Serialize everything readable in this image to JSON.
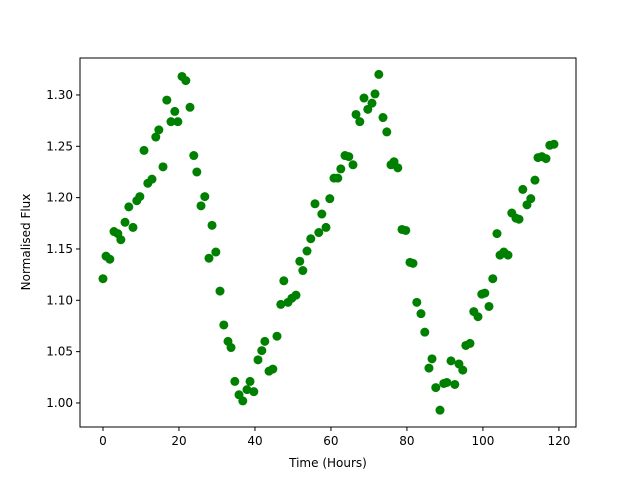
{
  "chart_data": {
    "type": "scatter",
    "xlabel": "Time (Hours)",
    "ylabel": "Normalised Flux",
    "color": "#008000",
    "xlim": [
      -6.05,
      124.5
    ],
    "ylim": [
      0.9766,
      1.336
    ],
    "xticks": [
      0,
      20,
      40,
      60,
      80,
      100,
      120
    ],
    "yticks": [
      {
        "value": 1.0,
        "label": "1.00"
      },
      {
        "value": 1.05,
        "label": "1.05"
      },
      {
        "value": 1.1,
        "label": "1.10"
      },
      {
        "value": 1.15,
        "label": "1.15"
      },
      {
        "value": 1.2,
        "label": "1.20"
      },
      {
        "value": 1.25,
        "label": "1.25"
      },
      {
        "value": 1.3,
        "label": "1.30"
      }
    ],
    "x": [
      0,
      0.8,
      1.8,
      2.9,
      3.9,
      4.7,
      5.8,
      6.8,
      7.9,
      8.9,
      9.7,
      10.8,
      11.8,
      12.9,
      13.9,
      14.7,
      15.8,
      16.8,
      17.9,
      18.9,
      19.7,
      20.8,
      21.8,
      22.9,
      23.9,
      24.7,
      25.8,
      26.8,
      27.9,
      28.7,
      29.7,
      30.8,
      31.8,
      32.9,
      33.7,
      34.7,
      35.8,
      36.8,
      37.9,
      38.7,
      39.7,
      40.8,
      41.8,
      42.6,
      43.7,
      44.7,
      45.8,
      46.8,
      47.6,
      48.7,
      49.7,
      50.8,
      51.8,
      52.6,
      53.7,
      54.7,
      55.8,
      56.8,
      57.6,
      58.7,
      59.7,
      60.8,
      61.8,
      62.6,
      63.7,
      64.7,
      65.8,
      66.6,
      67.6,
      68.7,
      69.7,
      70.8,
      71.6,
      72.6,
      73.7,
      74.7,
      75.8,
      76.6,
      77.6,
      78.7,
      79.7,
      80.8,
      81.6,
      82.6,
      83.7,
      84.7,
      85.8,
      86.6,
      87.6,
      88.7,
      89.7,
      90.5,
      91.6,
      92.6,
      93.7,
      94.7,
      95.5,
      96.6,
      97.6,
      98.7,
      99.7,
      100.5,
      101.6,
      102.6,
      103.7,
      104.5,
      105.5,
      106.6,
      107.6,
      108.7,
      109.5,
      110.5,
      111.6,
      112.6,
      113.7,
      114.5,
      115.5,
      116.6,
      117.6,
      118.7
    ],
    "values": [
      1.121,
      1.143,
      1.14,
      1.167,
      1.165,
      1.159,
      1.176,
      1.191,
      1.171,
      1.197,
      1.201,
      1.246,
      1.214,
      1.218,
      1.259,
      1.266,
      1.23,
      1.295,
      1.274,
      1.284,
      1.274,
      1.318,
      1.314,
      1.288,
      1.241,
      1.225,
      1.192,
      1.201,
      1.141,
      1.173,
      1.147,
      1.109,
      1.076,
      1.06,
      1.054,
      1.021,
      1.008,
      1.002,
      1.013,
      1.021,
      1.011,
      1.042,
      1.051,
      1.06,
      1.031,
      1.033,
      1.065,
      1.096,
      1.119,
      1.098,
      1.102,
      1.105,
      1.138,
      1.129,
      1.148,
      1.16,
      1.194,
      1.166,
      1.184,
      1.171,
      1.199,
      1.219,
      1.219,
      1.228,
      1.241,
      1.24,
      1.232,
      1.281,
      1.274,
      1.297,
      1.286,
      1.292,
      1.301,
      1.32,
      1.278,
      1.264,
      1.232,
      1.235,
      1.229,
      1.169,
      1.168,
      1.137,
      1.136,
      1.098,
      1.087,
      1.069,
      1.034,
      1.043,
      1.015,
      0.993,
      1.019,
      1.02,
      1.041,
      1.018,
      1.038,
      1.032,
      1.056,
      1.058,
      1.089,
      1.084,
      1.106,
      1.107,
      1.094,
      1.121,
      1.165,
      1.144,
      1.147,
      1.144,
      1.185,
      1.18,
      1.179,
      1.208,
      1.193,
      1.199,
      1.217,
      1.239,
      1.24,
      1.238,
      1.251,
      1.252
    ]
  }
}
